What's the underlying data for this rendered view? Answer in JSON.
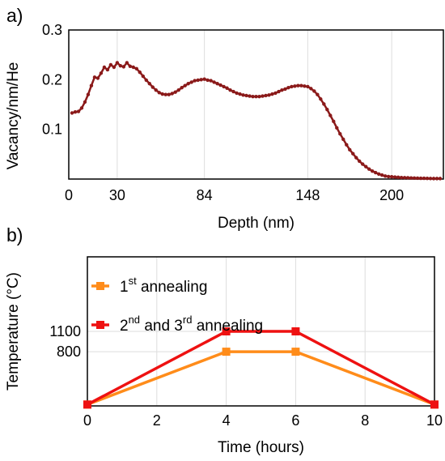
{
  "chart_data": [
    {
      "panel_label": "a)",
      "type": "line",
      "xlabel": "Depth (nm)",
      "ylabel": "Vacancy/nm/He",
      "xlim": [
        0,
        232
      ],
      "ylim": [
        0.0,
        0.3
      ],
      "xticks": [
        0,
        30,
        84,
        148,
        200
      ],
      "yticks": [
        0.1,
        0.2,
        0.3
      ],
      "ytick_labels": [
        "0.1",
        "0.2",
        "0.3"
      ],
      "grid": "vertical",
      "series": [
        {
          "color": "#8b1a1a",
          "marker": "circle",
          "x": [
            2,
            4,
            6,
            8,
            10,
            12,
            14,
            16,
            18,
            20,
            22,
            24,
            26,
            28,
            30,
            32,
            34,
            36,
            38,
            40,
            42,
            44,
            46,
            48,
            50,
            52,
            54,
            56,
            58,
            60,
            62,
            64,
            66,
            68,
            70,
            72,
            74,
            76,
            78,
            80,
            82,
            84,
            86,
            88,
            90,
            92,
            94,
            96,
            98,
            100,
            102,
            104,
            106,
            108,
            110,
            112,
            114,
            116,
            118,
            120,
            122,
            124,
            126,
            128,
            130,
            132,
            134,
            136,
            138,
            140,
            142,
            144,
            146,
            148,
            150,
            152,
            154,
            156,
            158,
            160,
            162,
            164,
            166,
            168,
            170,
            172,
            174,
            176,
            178,
            180,
            182,
            184,
            186,
            188,
            190,
            192,
            194,
            196,
            198,
            200,
            202,
            204,
            206,
            208,
            210,
            212,
            214,
            216,
            218,
            220,
            222,
            224,
            226,
            228,
            230
          ],
          "y": [
            0.133,
            0.135,
            0.136,
            0.143,
            0.155,
            0.17,
            0.188,
            0.205,
            0.203,
            0.213,
            0.225,
            0.22,
            0.23,
            0.225,
            0.234,
            0.228,
            0.226,
            0.234,
            0.227,
            0.225,
            0.222,
            0.215,
            0.207,
            0.199,
            0.192,
            0.185,
            0.179,
            0.174,
            0.171,
            0.17,
            0.17,
            0.172,
            0.175,
            0.179,
            0.184,
            0.188,
            0.192,
            0.195,
            0.198,
            0.199,
            0.2,
            0.201,
            0.199,
            0.198,
            0.195,
            0.192,
            0.189,
            0.186,
            0.183,
            0.179,
            0.176,
            0.173,
            0.171,
            0.169,
            0.168,
            0.167,
            0.166,
            0.166,
            0.166,
            0.167,
            0.168,
            0.169,
            0.171,
            0.173,
            0.176,
            0.179,
            0.181,
            0.184,
            0.186,
            0.187,
            0.188,
            0.188,
            0.187,
            0.186,
            0.182,
            0.177,
            0.17,
            0.161,
            0.151,
            0.14,
            0.128,
            0.116,
            0.103,
            0.091,
            0.08,
            0.069,
            0.059,
            0.051,
            0.043,
            0.036,
            0.03,
            0.025,
            0.02,
            0.016,
            0.013,
            0.01,
            0.008,
            0.006,
            0.005,
            0.0045,
            0.004,
            0.0035,
            0.003,
            0.0028,
            0.0025,
            0.0022,
            0.002,
            0.0018,
            0.0016,
            0.0015,
            0.0013,
            0.0012,
            0.001,
            0.001,
            0.001
          ]
        }
      ]
    },
    {
      "panel_label": "b)",
      "type": "line",
      "xlabel": "Time (hours)",
      "ylabel": "Temperature (°C)",
      "xlim": [
        0,
        10
      ],
      "ylim": [
        0,
        2200
      ],
      "xticks": [
        0,
        2,
        4,
        6,
        8,
        10
      ],
      "yticks": [
        800,
        1100
      ],
      "ytick_labels": [
        "800",
        "1100"
      ],
      "grid": "both",
      "legend_position": "top-left",
      "series": [
        {
          "name": "1st annealing",
          "name_parts": [
            "1",
            "st",
            " annealing"
          ],
          "color": "#ff8c1a",
          "marker": "square",
          "x": [
            0,
            4,
            6,
            10
          ],
          "y": [
            20,
            800,
            800,
            20
          ]
        },
        {
          "name": "2nd and 3rd annealing",
          "name_parts": [
            "2",
            "nd",
            " and 3",
            "rd",
            " annealing"
          ],
          "color": "#ee1111",
          "marker": "square",
          "x": [
            0,
            4,
            6,
            10
          ],
          "y": [
            20,
            1100,
            1100,
            20
          ]
        }
      ]
    }
  ]
}
